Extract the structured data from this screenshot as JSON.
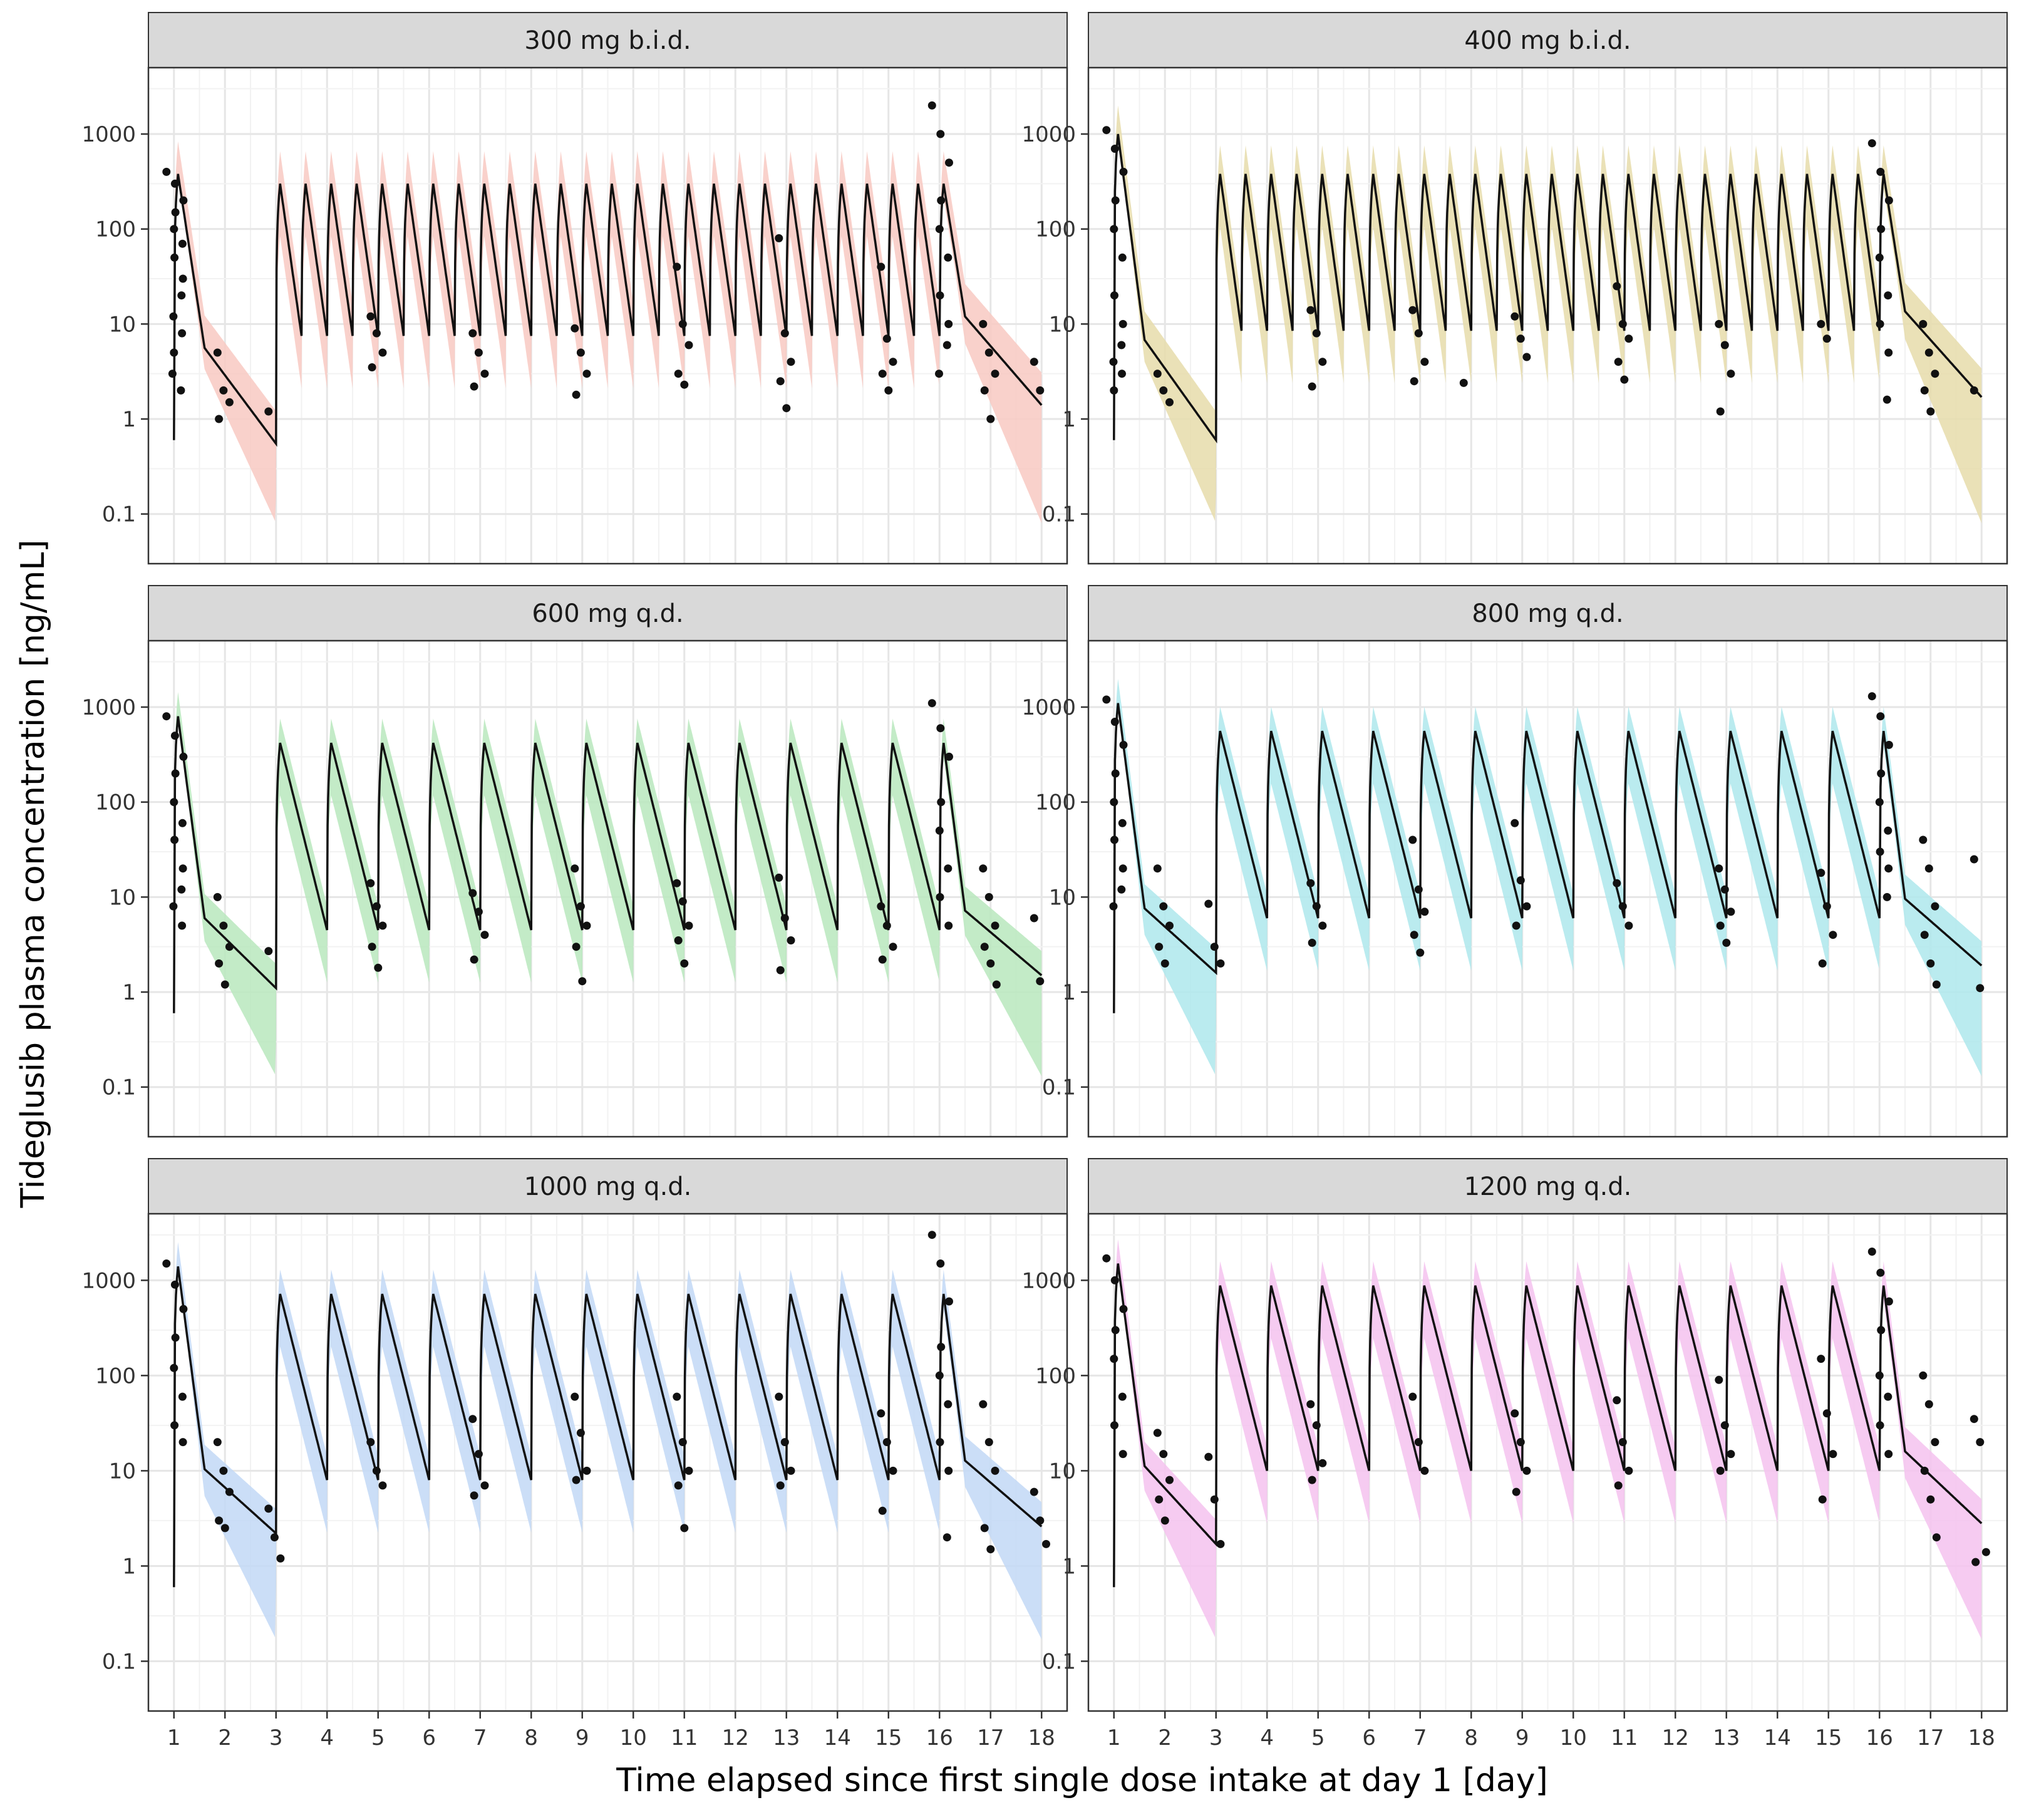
{
  "figure": {
    "ylabel": "Tideglusib plasma concentration [ng/mL]",
    "xlabel": "Time elapsed since first single dose intake at day 1 [day]"
  },
  "chart_data": {
    "type": "line",
    "x_scale": "linear",
    "y_scale": "log10",
    "xlim": [
      0.5,
      18.5
    ],
    "ylim": [
      0.03,
      5000
    ],
    "x_ticks": [
      1,
      2,
      3,
      4,
      5,
      6,
      7,
      8,
      9,
      10,
      11,
      12,
      13,
      14,
      15,
      16,
      17,
      18
    ],
    "x_tick_labels": [
      "1",
      "2",
      "3",
      "4",
      "5",
      "6",
      "7",
      "8",
      "9",
      "10",
      "11",
      "12",
      "13",
      "14",
      "15",
      "16",
      "17",
      "18"
    ],
    "y_ticks": [
      0.1,
      1,
      10,
      100,
      1000
    ],
    "y_tick_labels": [
      "0.1",
      "1",
      "10",
      "100",
      "1000"
    ],
    "grid": true,
    "series_description": "Model-predicted median (solid line), prediction interval (shaded band) and observed concentrations (points)",
    "panels": [
      {
        "title": "300 mg b.i.d.",
        "band_color": "#f8c9c2",
        "regimen": "bid",
        "day1_peak": 380,
        "peak": 300,
        "trough": 7.5,
        "end_trough": 0.55,
        "washout_end": 1.4,
        "band_upper_factor": 2.2,
        "band_lower_at_end": 0.08,
        "observations": [
          {
            "day": 1,
            "values": [
              400,
              300,
              200,
              150,
              100,
              70,
              50,
              30,
              20,
              12,
              8,
              5,
              3,
              2
            ]
          },
          {
            "day": 2,
            "values": [
              5,
              2,
              1.5,
              1
            ]
          },
          {
            "day": 3,
            "values": [
              1.2
            ]
          },
          {
            "day": 5,
            "values": [
              12,
              8,
              5,
              3.5
            ]
          },
          {
            "day": 7,
            "values": [
              8,
              5,
              3,
              2.2
            ]
          },
          {
            "day": 9,
            "values": [
              9,
              5,
              3,
              1.8
            ]
          },
          {
            "day": 11,
            "values": [
              40,
              10,
              6,
              3,
              2.3
            ]
          },
          {
            "day": 13,
            "values": [
              80,
              8,
              4,
              2.5,
              1.3
            ]
          },
          {
            "day": 15,
            "values": [
              40,
              7,
              4,
              3,
              2
            ]
          },
          {
            "day": 16,
            "values": [
              2000,
              1000,
              500,
              200,
              100,
              50,
              20,
              10,
              6,
              3
            ]
          },
          {
            "day": 17,
            "values": [
              10,
              5,
              3,
              2,
              1
            ]
          },
          {
            "day": 18,
            "values": [
              4,
              2
            ]
          }
        ]
      },
      {
        "title": "400 mg b.i.d.",
        "band_color": "#e6dcaa",
        "regimen": "bid",
        "day1_peak": 1000,
        "peak": 380,
        "trough": 8.5,
        "end_trough": 0.6,
        "washout_end": 1.7,
        "band_upper_factor": 2.0,
        "band_lower_at_end": 0.08,
        "observations": [
          {
            "day": 1,
            "values": [
              1100,
              700,
              400,
              200,
              100,
              50,
              20,
              10,
              6,
              4,
              3,
              2
            ]
          },
          {
            "day": 2,
            "values": [
              3,
              2,
              1.5
            ]
          },
          {
            "day": 5,
            "values": [
              14,
              8,
              4,
              2.2
            ]
          },
          {
            "day": 7,
            "values": [
              14,
              8,
              4,
              2.5
            ]
          },
          {
            "day": 8,
            "values": [
              2.4
            ]
          },
          {
            "day": 9,
            "values": [
              12,
              7,
              4.5
            ]
          },
          {
            "day": 11,
            "values": [
              25,
              10,
              7,
              4,
              2.6
            ]
          },
          {
            "day": 13,
            "values": [
              10,
              6,
              3,
              1.2
            ]
          },
          {
            "day": 15,
            "values": [
              10,
              7
            ]
          },
          {
            "day": 16,
            "values": [
              800,
              400,
              200,
              100,
              50,
              20,
              10,
              5,
              1.6
            ]
          },
          {
            "day": 17,
            "values": [
              10,
              5,
              3,
              2,
              1.2
            ]
          },
          {
            "day": 18,
            "values": [
              2
            ]
          }
        ]
      },
      {
        "title": "600 mg q.d.",
        "band_color": "#b8e8bd",
        "regimen": "qd",
        "day1_peak": 800,
        "peak": 420,
        "trough": 4.5,
        "end_trough": 1.1,
        "washout_end": 1.5,
        "band_upper_factor": 1.8,
        "band_lower_at_end": 0.13,
        "observations": [
          {
            "day": 1,
            "values": [
              800,
              500,
              300,
              200,
              100,
              60,
              40,
              20,
              12,
              8,
              5
            ]
          },
          {
            "day": 2,
            "values": [
              10,
              5,
              3,
              2,
              1.2
            ]
          },
          {
            "day": 3,
            "values": [
              2.7
            ]
          },
          {
            "day": 5,
            "values": [
              14,
              8,
              5,
              3,
              1.8
            ]
          },
          {
            "day": 7,
            "values": [
              11,
              7,
              4,
              2.2
            ]
          },
          {
            "day": 9,
            "values": [
              20,
              8,
              5,
              3,
              1.3
            ]
          },
          {
            "day": 11,
            "values": [
              14,
              9,
              5,
              3.5,
              2
            ]
          },
          {
            "day": 13,
            "values": [
              16,
              6,
              3.5,
              1.7
            ]
          },
          {
            "day": 15,
            "values": [
              8,
              5,
              3,
              2.2
            ]
          },
          {
            "day": 16,
            "values": [
              1100,
              600,
              300,
              100,
              50,
              20,
              10,
              5
            ]
          },
          {
            "day": 17,
            "values": [
              20,
              10,
              5,
              3,
              2,
              1.2
            ]
          },
          {
            "day": 18,
            "values": [
              6,
              1.3
            ]
          }
        ]
      },
      {
        "title": "800 mg q.d.",
        "band_color": "#aee8ec",
        "regimen": "qd",
        "day1_peak": 1100,
        "peak": 560,
        "trough": 6,
        "end_trough": 1.6,
        "washout_end": 1.9,
        "band_upper_factor": 1.8,
        "band_lower_at_end": 0.13,
        "observations": [
          {
            "day": 1,
            "values": [
              1200,
              700,
              400,
              200,
              100,
              60,
              40,
              20,
              12,
              8
            ]
          },
          {
            "day": 2,
            "values": [
              20,
              8,
              5,
              3,
              2
            ]
          },
          {
            "day": 3,
            "values": [
              8.5,
              3,
              2
            ]
          },
          {
            "day": 5,
            "values": [
              14,
              8,
              5,
              3.3
            ]
          },
          {
            "day": 7,
            "values": [
              40,
              12,
              7,
              4,
              2.6
            ]
          },
          {
            "day": 9,
            "values": [
              60,
              15,
              8,
              5
            ]
          },
          {
            "day": 11,
            "values": [
              14,
              8,
              5
            ]
          },
          {
            "day": 13,
            "values": [
              20,
              12,
              7,
              5,
              3.3
            ]
          },
          {
            "day": 15,
            "values": [
              18,
              8,
              4,
              2
            ]
          },
          {
            "day": 16,
            "values": [
              1300,
              800,
              400,
              200,
              100,
              50,
              30,
              20,
              10
            ]
          },
          {
            "day": 17,
            "values": [
              40,
              20,
              8,
              4,
              2,
              1.2
            ]
          },
          {
            "day": 18,
            "values": [
              25,
              1.1
            ]
          }
        ]
      },
      {
        "title": "1000 mg q.d.",
        "band_color": "#c2d8f6",
        "regimen": "qd",
        "day1_peak": 1400,
        "peak": 720,
        "trough": 8,
        "end_trough": 2.2,
        "washout_end": 2.6,
        "band_upper_factor": 1.8,
        "band_lower_at_end": 0.17,
        "observations": [
          {
            "day": 1,
            "values": [
              1500,
              900,
              500,
              250,
              120,
              60,
              30,
              20
            ]
          },
          {
            "day": 2,
            "values": [
              20,
              10,
              6,
              3,
              2.5
            ]
          },
          {
            "day": 3,
            "values": [
              4,
              2,
              1.2
            ]
          },
          {
            "day": 5,
            "values": [
              20,
              10,
              7
            ]
          },
          {
            "day": 7,
            "values": [
              35,
              15,
              7,
              5.5
            ]
          },
          {
            "day": 9,
            "values": [
              60,
              25,
              10,
              8
            ]
          },
          {
            "day": 11,
            "values": [
              60,
              20,
              10,
              7,
              2.5
            ]
          },
          {
            "day": 13,
            "values": [
              60,
              20,
              10,
              7
            ]
          },
          {
            "day": 15,
            "values": [
              40,
              20,
              10,
              3.8
            ]
          },
          {
            "day": 16,
            "values": [
              3000,
              1500,
              600,
              200,
              100,
              50,
              20,
              10,
              2
            ]
          },
          {
            "day": 17,
            "values": [
              50,
              20,
              10,
              2.5,
              1.5
            ]
          },
          {
            "day": 18,
            "values": [
              6,
              3,
              1.7
            ]
          }
        ]
      },
      {
        "title": "1200 mg q.d.",
        "band_color": "#f4c2ee",
        "regimen": "qd",
        "day1_peak": 1500,
        "peak": 880,
        "trough": 10,
        "end_trough": 1.7,
        "washout_end": 2.8,
        "band_upper_factor": 1.8,
        "band_lower_at_end": 0.17,
        "observations": [
          {
            "day": 1,
            "values": [
              1700,
              1000,
              500,
              300,
              150,
              60,
              30,
              15
            ]
          },
          {
            "day": 2,
            "values": [
              25,
              15,
              8,
              5,
              3
            ]
          },
          {
            "day": 3,
            "values": [
              14,
              5,
              1.7
            ]
          },
          {
            "day": 5,
            "values": [
              50,
              30,
              12,
              8
            ]
          },
          {
            "day": 7,
            "values": [
              60,
              20,
              10
            ]
          },
          {
            "day": 9,
            "values": [
              40,
              20,
              10,
              6
            ]
          },
          {
            "day": 11,
            "values": [
              55,
              20,
              10,
              7
            ]
          },
          {
            "day": 13,
            "values": [
              90,
              30,
              15,
              10
            ]
          },
          {
            "day": 15,
            "values": [
              150,
              40,
              15,
              5
            ]
          },
          {
            "day": 16,
            "values": [
              2000,
              1200,
              600,
              300,
              100,
              60,
              30,
              15
            ]
          },
          {
            "day": 17,
            "values": [
              100,
              50,
              20,
              10,
              5,
              2
            ]
          },
          {
            "day": 18,
            "values": [
              35,
              20,
              1.4,
              1.1
            ]
          }
        ]
      }
    ]
  }
}
